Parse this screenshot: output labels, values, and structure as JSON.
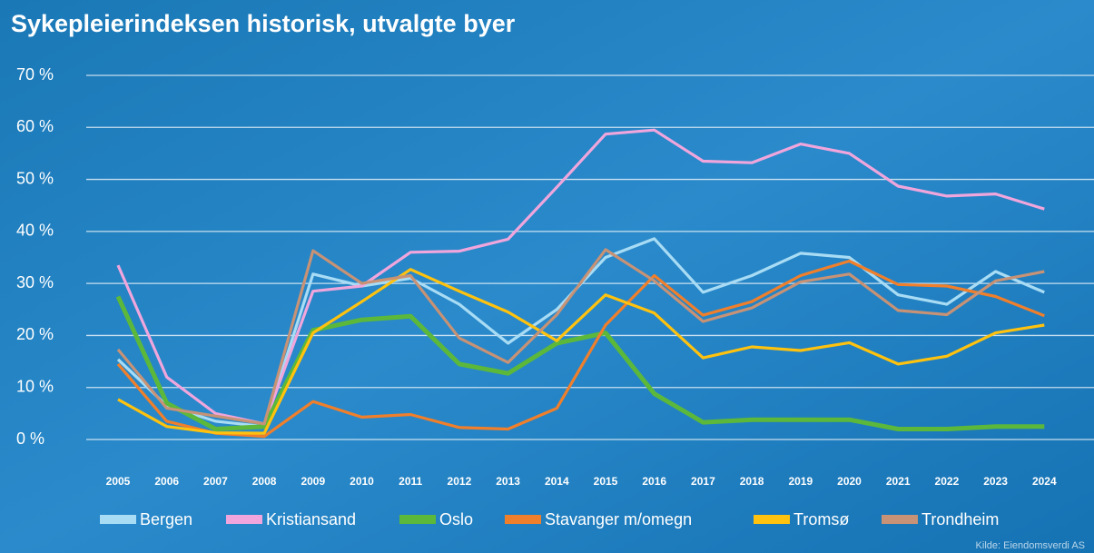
{
  "chart_data": {
    "type": "line",
    "title": "Sykepleierindeksen historisk, utvalgte byer",
    "source": "Kilde: Eiendomsverdi AS",
    "categories": [
      "2005",
      "2006",
      "2007",
      "2008",
      "2009",
      "2010",
      "2011",
      "2012",
      "2013",
      "2014",
      "2015",
      "2016",
      "2017",
      "2018",
      "2019",
      "2020",
      "2021",
      "2022",
      "2023",
      "2024"
    ],
    "ylim": [
      0,
      70
    ],
    "yticks": [
      {
        "value": 0,
        "label": "0 %"
      },
      {
        "value": 10,
        "label": "10 %"
      },
      {
        "value": 20,
        "label": "20 %"
      },
      {
        "value": 30,
        "label": "30 %"
      },
      {
        "value": 40,
        "label": "40 %"
      },
      {
        "value": 50,
        "label": "50 %"
      },
      {
        "value": 60,
        "label": "60 %"
      },
      {
        "value": 70,
        "label": "70 %"
      }
    ],
    "grid": true,
    "legend": "bottom",
    "series": [
      {
        "name": "Bergen",
        "color": "#a8dcf5",
        "values": [
          15.4,
          6.5,
          3.5,
          2.5,
          31.8,
          29.5,
          31,
          26,
          18.5,
          25,
          35,
          38.6,
          28.3,
          31.5,
          35.8,
          35,
          27.8,
          26,
          32.3,
          28.3
        ]
      },
      {
        "name": "Kristiansand",
        "color": "#f0a6dc",
        "values": [
          33.5,
          12,
          5,
          3,
          28.5,
          29.5,
          36,
          36.2,
          38.5,
          48.5,
          58.7,
          59.5,
          53.5,
          53.2,
          56.8,
          55,
          48.7,
          46.8,
          47.2,
          44.3
        ]
      },
      {
        "name": "Oslo",
        "color": "#5cb83a",
        "values": [
          27.5,
          7,
          2,
          2.5,
          21,
          23,
          23.7,
          14.5,
          12.7,
          18.5,
          20.5,
          8.8,
          3.3,
          3.8,
          3.8,
          3.8,
          2,
          2,
          2.5,
          2.5
        ]
      },
      {
        "name": "Stavanger m/omegn",
        "color": "#f07f2b",
        "values": [
          14.5,
          3.5,
          1.2,
          0.6,
          7.3,
          4.3,
          4.8,
          2.3,
          2,
          6,
          22,
          31.5,
          23.9,
          26.5,
          31.5,
          34.3,
          29.8,
          29.5,
          27.5,
          23.8
        ]
      },
      {
        "name": "Tromsø",
        "color": "#ffc20e",
        "values": [
          7.7,
          2.5,
          1.3,
          1.2,
          20.5,
          26.5,
          32.7,
          28.5,
          24.5,
          19,
          27.8,
          24.3,
          15.7,
          17.8,
          17.1,
          18.6,
          14.5,
          16,
          20.5,
          22
        ]
      },
      {
        "name": "Trondheim",
        "color": "#c79275",
        "values": [
          17.3,
          6,
          4.5,
          3,
          36.3,
          30,
          31.5,
          19.5,
          14.8,
          24,
          36.5,
          30.5,
          22.7,
          25.3,
          30.3,
          31.8,
          24.8,
          24,
          30.5,
          32.3
        ]
      }
    ]
  }
}
